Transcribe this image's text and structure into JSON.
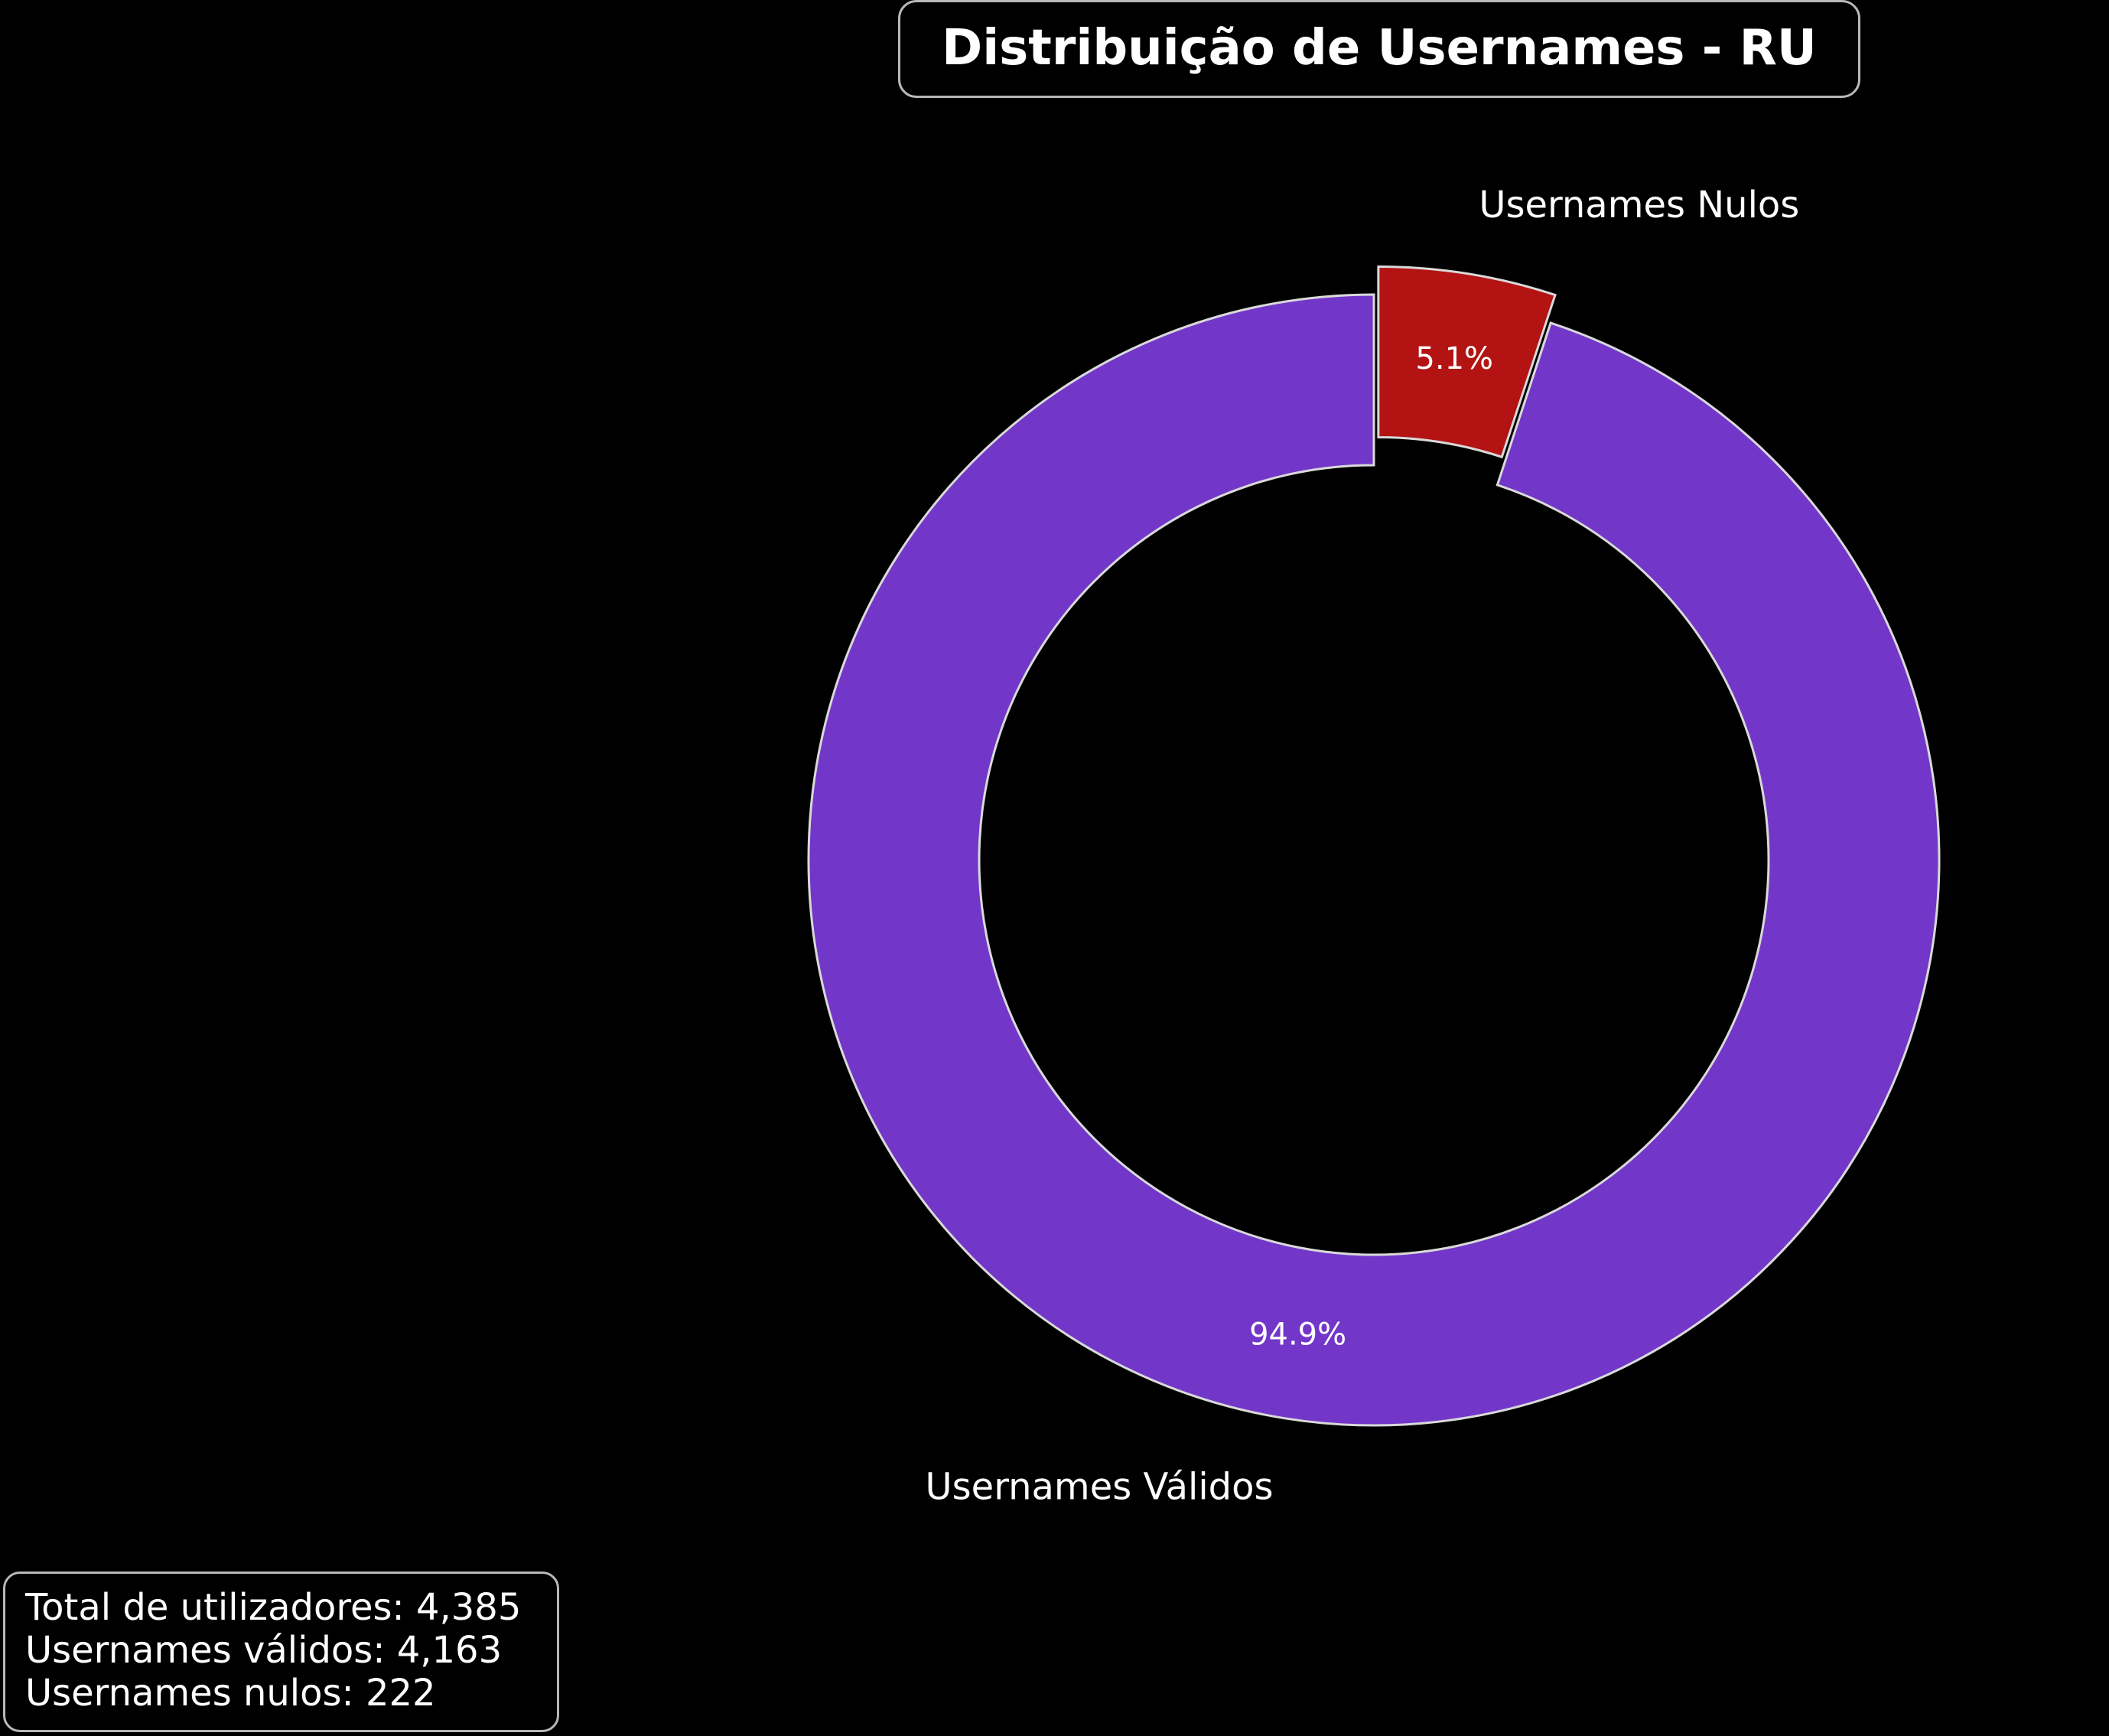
{
  "chart_data": {
    "type": "pie",
    "title": "Distribuição de Usernames - RU",
    "slices": [
      {
        "label": "Usernames Nulos",
        "value": 222,
        "percent_label": "5.1%",
        "color": "#b31313",
        "exploded": true
      },
      {
        "label": "Usernames Válidos",
        "value": 4163,
        "percent_label": "94.9%",
        "color": "#7237c8",
        "exploded": false
      }
    ],
    "total": 4385,
    "donut": true,
    "edge_color": "#d9d9d9"
  },
  "stats": {
    "total": "Total de utilizadores: 4,385",
    "valid": "Usernames válidos: 4,163",
    "null": "Usernames nulos: 222"
  },
  "colors": {
    "background": "#000000",
    "text": "#ffffff"
  }
}
